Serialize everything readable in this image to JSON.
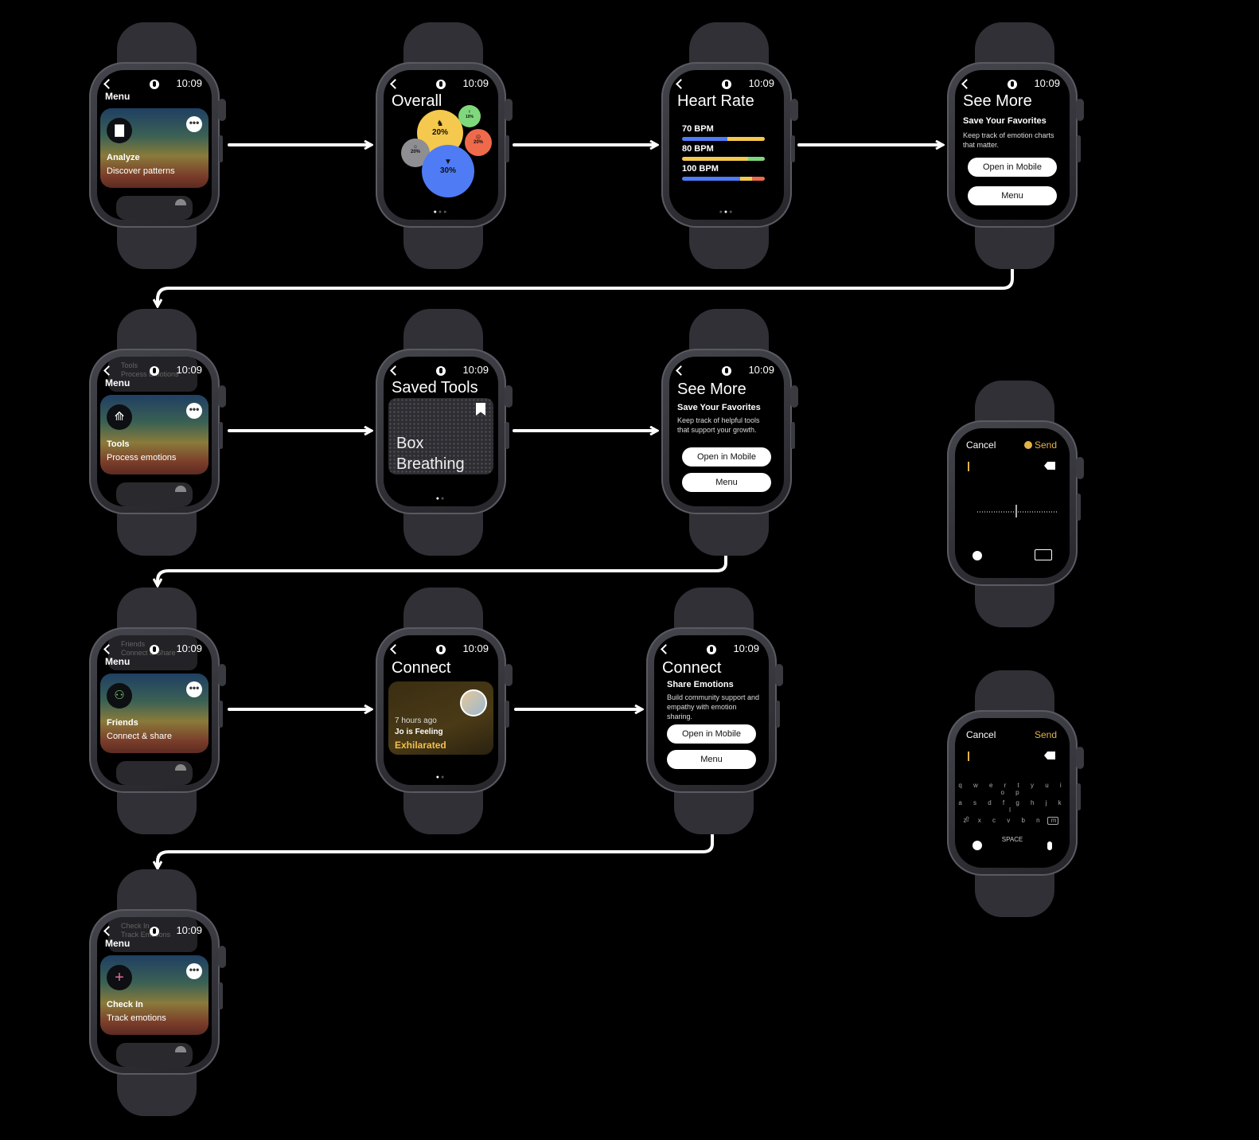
{
  "status_time": "10:09",
  "menu_label": "Menu",
  "menu_cards": {
    "analyze": {
      "title": "Analyze",
      "subtitle": "Discover patterns",
      "icon": "bar-chart-icon"
    },
    "tools": {
      "title": "Tools",
      "subtitle": "Process emotions",
      "icon": "pen-tool-icon",
      "ghost_title": "Tools",
      "ghost_subtitle": "Process Emotions"
    },
    "friends": {
      "title": "Friends",
      "subtitle": "Connect & share",
      "icon": "people-icon",
      "ghost_title": "Friends",
      "ghost_subtitle": "Connect & Share"
    },
    "checkin": {
      "title": "Check In",
      "subtitle": "Track emotions",
      "icon": "plus-icon",
      "ghost_title": "Check In",
      "ghost_subtitle": "Track Emotions"
    }
  },
  "overall": {
    "title": "Overall",
    "bubbles": [
      {
        "value": "20%",
        "color": "#f5c94d",
        "icon": "unicorn-icon"
      },
      {
        "value": "10%",
        "color": "#7fd87b",
        "icon": "victory-hand-icon"
      },
      {
        "value": "20%",
        "color": "#ef6a4b",
        "icon": "angry-face-icon"
      },
      {
        "value": "20%",
        "color": "#8e8e93",
        "icon": "cat-face-icon"
      },
      {
        "value": "30%",
        "color": "#4f7cf5",
        "icon": "thumbs-down-icon"
      }
    ]
  },
  "heart_rate": {
    "title": "Heart Rate",
    "rows": [
      {
        "label": "70 BPM",
        "segments": [
          {
            "share": 0.55,
            "color": "#4f7cf5"
          },
          {
            "share": 0.45,
            "color": "#f5c94d"
          }
        ]
      },
      {
        "label": "80 BPM",
        "segments": [
          {
            "share": 0.8,
            "color": "#f5c94d"
          },
          {
            "share": 0.2,
            "color": "#7fd87b"
          }
        ]
      },
      {
        "label": "100 BPM",
        "segments": [
          {
            "share": 0.7,
            "color": "#4f7cf5"
          },
          {
            "share": 0.15,
            "color": "#f5c94d"
          },
          {
            "share": 0.15,
            "color": "#ef6a4b"
          }
        ]
      }
    ]
  },
  "see_more_analyze": {
    "title": "See More",
    "subtitle": "Save Your Favorites",
    "body": "Keep track of emotion charts that matter.",
    "primary_button": "Open in Mobile",
    "secondary_button": "Menu"
  },
  "saved_tools": {
    "title": "Saved Tools",
    "card_label": "Box Breathing"
  },
  "see_more_tools": {
    "title": "See More",
    "subtitle": "Save Your Favorites",
    "body": "Keep track of helpful tools that support your growth.",
    "primary_button": "Open in Mobile",
    "secondary_button": "Menu"
  },
  "connect": {
    "title": "Connect",
    "time_ago": "7 hours ago",
    "line1": "Jo is Feeling",
    "feeling": "Exhilarated"
  },
  "connect_share": {
    "title": "Connect",
    "subtitle": "Share Emotions",
    "body": "Build community support and empathy with emotion sharing.",
    "primary_button": "Open in Mobile",
    "secondary_button": "Menu"
  },
  "dictation": {
    "cancel": "Cancel",
    "send": "Send"
  },
  "keyboard": {
    "cancel": "Cancel",
    "send": "Send",
    "row1": "q w e r t y u i o p",
    "row2": "a s d f g h j k l",
    "row3": "z x c v b n m",
    "space": "SPACE"
  },
  "colors": {
    "send_accent": "#e2b24a",
    "feeling_accent": "#f2c04e"
  }
}
